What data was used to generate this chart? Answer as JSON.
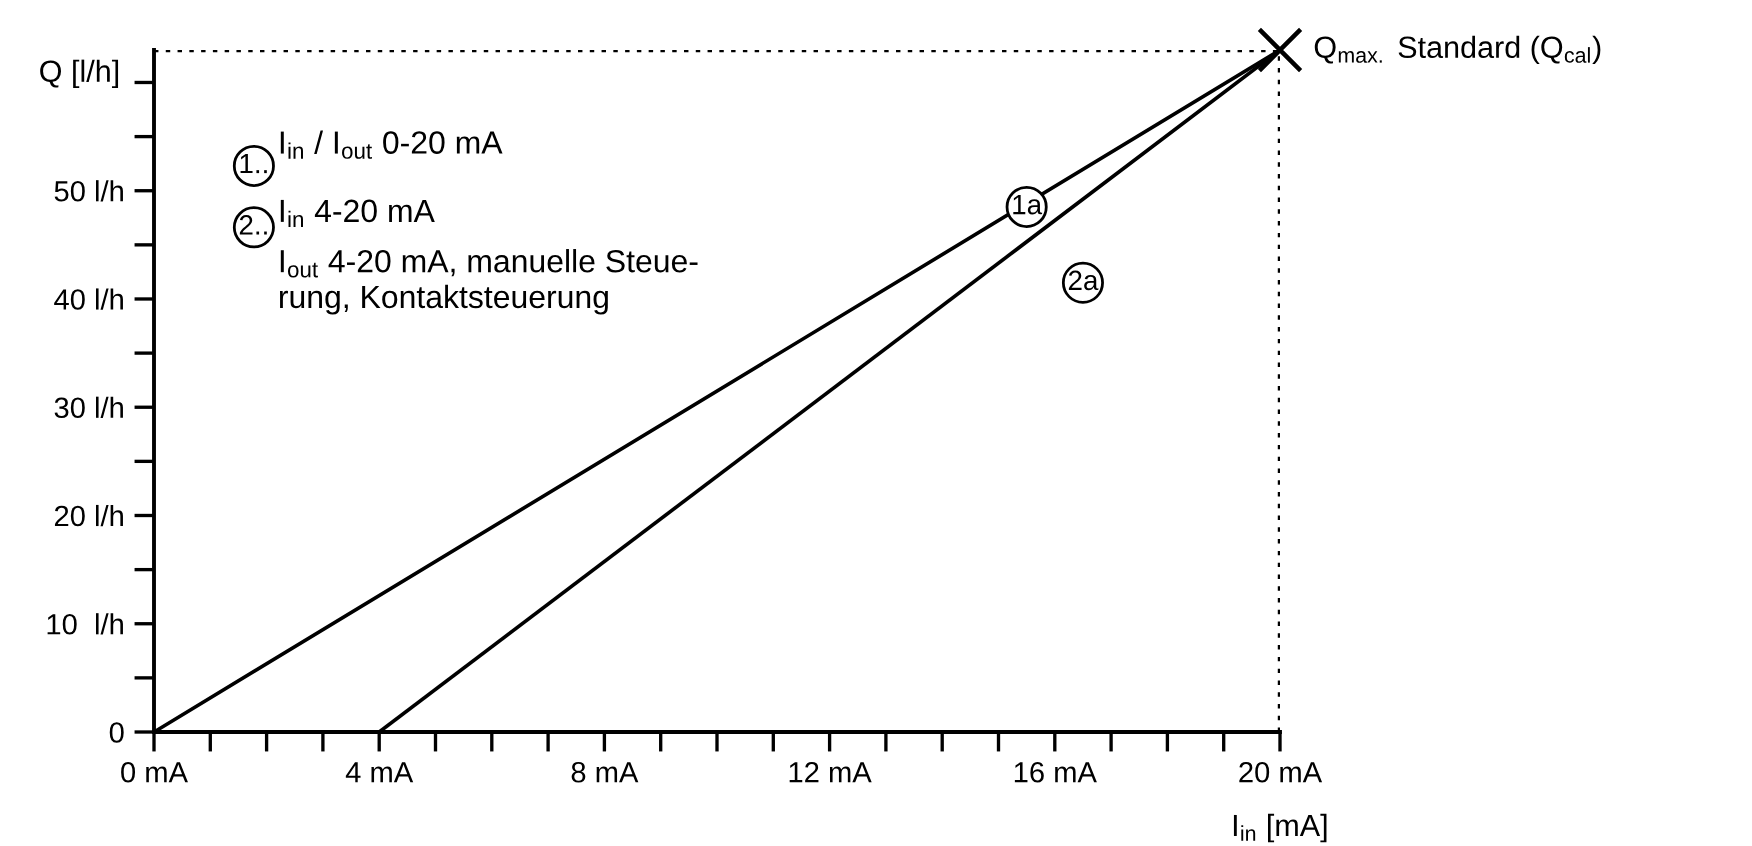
{
  "chart_data": {
    "type": "line",
    "xlabel": "I$_{in}$ [mA]",
    "ylabel": "Q [l/h]",
    "series": [
      {
        "x": [
          0,
          20
        ],
        "values": [
          0,
          63
        ],
        "color": "#000000"
      },
      {
        "x": [
          4,
          20
        ],
        "values": [
          0,
          63
        ],
        "color": "#000000"
      },
      {
        "type": "scatter",
        "name": "Q$_{max.}$ Standard (Q$_{cal}$)",
        "x": [
          20
        ],
        "values": [
          63
        ],
        "color": "#000000",
        "marker": "cross"
      }
    ],
    "xlim": [
      0,
      20
    ],
    "ylim": [
      0,
      63
    ],
    "xticks": [
      {
        "value": 0,
        "label": "0 mA"
      },
      {
        "value": 1,
        "label": null
      },
      {
        "value": 2,
        "label": null
      },
      {
        "value": 3,
        "label": null
      },
      {
        "value": 4,
        "label": "4 mA"
      },
      {
        "value": 5,
        "label": null
      },
      {
        "value": 6,
        "label": null
      },
      {
        "value": 7,
        "label": null
      },
      {
        "value": 8,
        "label": "8 mA"
      },
      {
        "value": 9,
        "label": null
      },
      {
        "value": 10,
        "label": null
      },
      {
        "value": 11,
        "label": null
      },
      {
        "value": 12,
        "label": "12 mA"
      },
      {
        "value": 13,
        "label": null
      },
      {
        "value": 14,
        "label": null
      },
      {
        "value": 15,
        "label": null
      },
      {
        "value": 16,
        "label": "16 mA"
      },
      {
        "value": 17,
        "label": null
      },
      {
        "value": 18,
        "label": null
      },
      {
        "value": 19,
        "label": null
      },
      {
        "value": 20,
        "label": "20 mA"
      }
    ],
    "yticks": [
      0,
      {
        "value": 5,
        "label": null
      },
      {
        "value": 10,
        "label": "10  l/h"
      },
      {
        "value": 15,
        "label": null
      },
      {
        "value": 20,
        "label": "20 l/h"
      },
      {
        "value": 25,
        "label": null
      },
      {
        "value": 30,
        "label": "30 l/h"
      },
      {
        "value": 35,
        "label": null
      },
      {
        "value": 40,
        "label": "40 l/h"
      },
      {
        "value": 45,
        "label": null
      },
      {
        "value": 50,
        "label": "50 l/h"
      },
      {
        "value": 55,
        "label": null
      },
      {
        "value": 60,
        "label": null
      }
    ],
    "ref_lines": [
      {
        "axis": "y",
        "value": 63,
        "line_style": "dotted",
        "color": "#000000"
      },
      {
        "axis": "x",
        "value": 20,
        "line_style": "dotted",
        "color": "#000000"
      }
    ],
    "annotations": [
      "1..",
      "2..",
      "I$_{in}$ / I$_{out}$ 0-20 mA",
      "I$_{in}$ 4-20 mA",
      "I$_{out}$ 4-20 mA, manuelle Steue-\nrung, Kontaktsteuerung",
      {
        "text": "1a",
        "x": 15.5,
        "y": 48.5
      },
      {
        "text": "2a",
        "x": 16.5,
        "y": 41.5
      }
    ],
    "grid": false,
    "legend": false
  }
}
